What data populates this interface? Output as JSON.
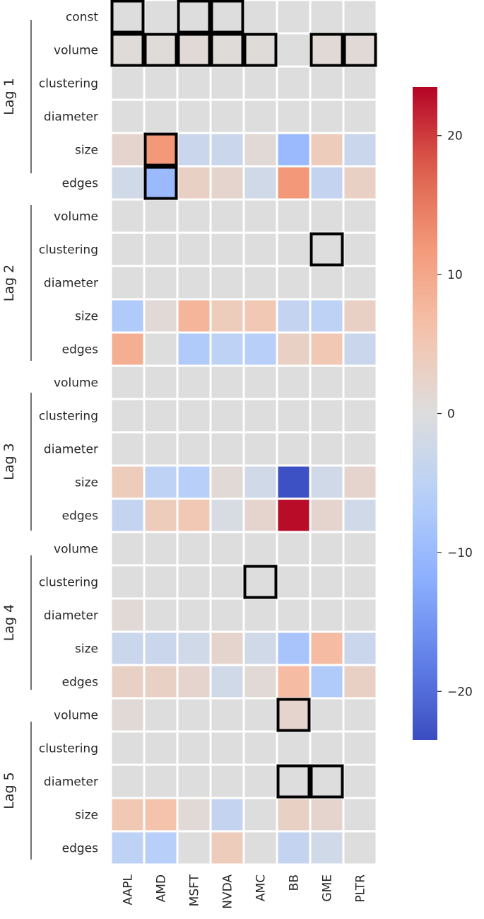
{
  "chart_data": {
    "type": "heatmap",
    "columns": [
      "AAPL",
      "AMD",
      "MSFT",
      "NVDA",
      "AMC",
      "BB",
      "GME",
      "PLTR"
    ],
    "rows": [
      {
        "group": "",
        "label": "const",
        "values": [
          0,
          0,
          0,
          0,
          0,
          0,
          0,
          0
        ]
      },
      {
        "group": "Lag 1",
        "label": "volume",
        "values": [
          0.5,
          0.5,
          1,
          0.5,
          0.5,
          0,
          1,
          1
        ]
      },
      {
        "group": "Lag 1",
        "label": "clustering",
        "values": [
          0,
          0,
          0,
          0,
          0,
          0,
          0,
          0
        ]
      },
      {
        "group": "Lag 1",
        "label": "diameter",
        "values": [
          0,
          0,
          0,
          0,
          0,
          0,
          0,
          0
        ]
      },
      {
        "group": "Lag 1",
        "label": "size",
        "values": [
          2,
          12,
          -3,
          -3,
          1,
          -10,
          4,
          -3
        ]
      },
      {
        "group": "Lag 1",
        "label": "edges",
        "values": [
          -2,
          -10,
          3,
          2,
          -2,
          12,
          -4,
          3
        ]
      },
      {
        "group": "Lag 2",
        "label": "volume",
        "values": [
          0,
          0,
          0,
          0,
          0,
          0,
          0,
          0
        ]
      },
      {
        "group": "Lag 2",
        "label": "clustering",
        "values": [
          0,
          0,
          0,
          0,
          0,
          0,
          0,
          0
        ]
      },
      {
        "group": "Lag 2",
        "label": "diameter",
        "values": [
          0,
          0,
          0,
          0,
          0,
          0,
          0,
          0
        ]
      },
      {
        "group": "Lag 2",
        "label": "size",
        "values": [
          -7,
          1,
          8,
          4,
          5,
          -4,
          -5,
          3
        ]
      },
      {
        "group": "Lag 2",
        "label": "edges",
        "values": [
          9,
          0,
          -7,
          -5,
          -6,
          3,
          5,
          -3
        ]
      },
      {
        "group": "Lag 3",
        "label": "volume",
        "values": [
          0,
          0,
          0,
          0,
          0,
          0,
          0,
          0
        ]
      },
      {
        "group": "Lag 3",
        "label": "clustering",
        "values": [
          0,
          0,
          0,
          0,
          0,
          0,
          0,
          0
        ]
      },
      {
        "group": "Lag 3",
        "label": "diameter",
        "values": [
          0,
          0,
          0,
          0,
          0,
          0,
          0,
          0
        ]
      },
      {
        "group": "Lag 3",
        "label": "size",
        "values": [
          4,
          -5,
          -6,
          1,
          -2,
          -23,
          -2,
          2
        ]
      },
      {
        "group": "Lag 3",
        "label": "edges",
        "values": [
          -4,
          4,
          5,
          -1,
          2,
          23,
          2,
          -2
        ]
      },
      {
        "group": "Lag 4",
        "label": "volume",
        "values": [
          0,
          0,
          0,
          0,
          0,
          0,
          0,
          0
        ]
      },
      {
        "group": "Lag 4",
        "label": "clustering",
        "values": [
          0,
          0,
          0,
          0,
          0,
          0,
          0,
          0
        ]
      },
      {
        "group": "Lag 4",
        "label": "diameter",
        "values": [
          1,
          0,
          0,
          0,
          0,
          0,
          0,
          0
        ]
      },
      {
        "group": "Lag 4",
        "label": "size",
        "values": [
          -3,
          -3,
          -2,
          2,
          -2,
          -8,
          7,
          -3
        ]
      },
      {
        "group": "Lag 4",
        "label": "edges",
        "values": [
          3,
          3,
          2,
          -2,
          1,
          7,
          -7,
          3
        ]
      },
      {
        "group": "Lag 5",
        "label": "volume",
        "values": [
          1,
          0,
          0,
          0,
          0,
          2,
          0,
          0
        ]
      },
      {
        "group": "Lag 5",
        "label": "clustering",
        "values": [
          0,
          0,
          0,
          0,
          0,
          0,
          0,
          0
        ]
      },
      {
        "group": "Lag 5",
        "label": "diameter",
        "values": [
          0,
          0,
          0,
          0,
          0,
          0,
          0,
          0
        ]
      },
      {
        "group": "Lag 5",
        "label": "size",
        "values": [
          5,
          6,
          1,
          -4,
          0,
          3,
          2,
          0
        ]
      },
      {
        "group": "Lag 5",
        "label": "edges",
        "values": [
          -5,
          -6,
          0,
          4,
          0,
          -4,
          -2,
          0
        ]
      }
    ],
    "groups": [
      {
        "name": "Lag 1",
        "first_row": 1,
        "last_row": 5
      },
      {
        "name": "Lag 2",
        "first_row": 6,
        "last_row": 10
      },
      {
        "name": "Lag 3",
        "first_row": 11,
        "last_row": 15
      },
      {
        "name": "Lag 4",
        "first_row": 16,
        "last_row": 20
      },
      {
        "name": "Lag 5",
        "first_row": 21,
        "last_row": 25
      }
    ],
    "highlighted_cells": [
      [
        0,
        0
      ],
      [
        0,
        2
      ],
      [
        0,
        3
      ],
      [
        1,
        0
      ],
      [
        1,
        1
      ],
      [
        1,
        2
      ],
      [
        1,
        3
      ],
      [
        1,
        4
      ],
      [
        1,
        6
      ],
      [
        1,
        7
      ],
      [
        4,
        1
      ],
      [
        5,
        1
      ],
      [
        7,
        6
      ],
      [
        17,
        4
      ],
      [
        21,
        5
      ],
      [
        23,
        5
      ],
      [
        23,
        6
      ]
    ],
    "colorbar": {
      "colormap": "coolwarm",
      "vmin": -23.5,
      "vmax": 23.5,
      "ticks": [
        20,
        10,
        0,
        -10,
        -20
      ],
      "tick_labels": [
        "20",
        "10",
        "0",
        "−10",
        "−20"
      ]
    }
  }
}
